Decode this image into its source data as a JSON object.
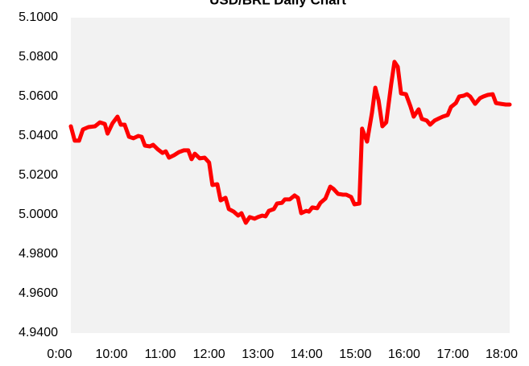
{
  "chart_data": {
    "type": "line",
    "title": "USD/BRL  Daily Chart",
    "x": [
      0,
      0.07,
      0.15,
      0.22,
      0.32,
      0.44,
      0.53,
      0.62,
      0.67,
      0.76,
      0.85,
      0.91,
      0.98,
      1.06,
      1.14,
      1.23,
      1.29,
      1.35,
      1.44,
      1.5,
      1.59,
      1.67,
      1.73,
      1.79,
      1.88,
      1.97,
      2.06,
      2.14,
      2.2,
      2.26,
      2.35,
      2.44,
      2.52,
      2.58,
      2.67,
      2.73,
      2.82,
      2.88,
      2.97,
      3.05,
      3.11,
      3.19,
      3.26,
      3.35,
      3.41,
      3.49,
      3.55,
      3.61,
      3.7,
      3.76,
      3.85,
      3.9,
      3.99,
      4.08,
      4.14,
      4.2,
      4.29,
      4.34,
      4.4,
      4.49,
      4.55,
      4.64,
      4.73,
      4.79,
      4.87,
      4.96,
      5.02,
      5.11,
      5.17,
      5.26,
      5.31,
      5.4,
      5.49,
      5.55,
      5.61,
      5.68,
      5.75,
      5.84,
      5.9,
      5.96,
      6.02,
      6.11,
      6.19,
      6.25,
      6.34,
      6.4,
      6.49,
      6.55,
      6.63,
      6.72,
      6.78,
      6.87,
      6.93,
      7.02,
      7.08,
      7.16,
      7.22,
      7.28,
      7.37,
      7.46,
      7.52,
      7.6,
      7.69,
      7.75,
      7.84,
      7.93,
      8
    ],
    "series": [
      {
        "name": "USD/BRL",
        "color": "#ff0000",
        "values": [
          5.0449,
          5.0376,
          5.0376,
          5.0433,
          5.0445,
          5.0449,
          5.0469,
          5.0461,
          5.0412,
          5.0465,
          5.0498,
          5.0457,
          5.0457,
          5.0396,
          5.0388,
          5.04,
          5.0396,
          5.0351,
          5.0347,
          5.0355,
          5.0331,
          5.0314,
          5.0322,
          5.029,
          5.0302,
          5.0318,
          5.0327,
          5.0327,
          5.0282,
          5.031,
          5.0286,
          5.029,
          5.0265,
          5.0151,
          5.0155,
          5.0073,
          5.0086,
          5.0029,
          5.0016,
          4.9996,
          5.0008,
          4.9959,
          4.9988,
          4.998,
          4.9988,
          4.9996,
          4.9992,
          5.002,
          5.0029,
          5.0057,
          5.0061,
          5.0078,
          5.0078,
          5.0098,
          5.0086,
          5.0008,
          5.002,
          5.0016,
          5.0037,
          5.0033,
          5.0061,
          5.0082,
          5.0143,
          5.0131,
          5.0106,
          5.0102,
          5.0102,
          5.009,
          5.0053,
          5.0057,
          5.0437,
          5.0371,
          5.0518,
          5.0645,
          5.058,
          5.0449,
          5.0469,
          5.0661,
          5.0776,
          5.0751,
          5.0616,
          5.0612,
          5.0551,
          5.0498,
          5.0535,
          5.0486,
          5.0478,
          5.0457,
          5.0478,
          5.049,
          5.0498,
          5.0506,
          5.0547,
          5.0567,
          5.06,
          5.0604,
          5.0612,
          5.06,
          5.0563,
          5.0592,
          5.06,
          5.0608,
          5.0612,
          5.0567,
          5.0563,
          5.0559,
          5.0559
        ]
      }
    ],
    "xlim": [
      0,
      8
    ],
    "xticks": [
      {
        "value": 0,
        "label": "0:00"
      },
      {
        "value": 1,
        "label": "10:00"
      },
      {
        "value": 2,
        "label": "11:00"
      },
      {
        "value": 3,
        "label": "12:00"
      },
      {
        "value": 4,
        "label": "13:00"
      },
      {
        "value": 5,
        "label": "14:00"
      },
      {
        "value": 6,
        "label": "15:00"
      },
      {
        "value": 7,
        "label": "16:00"
      },
      {
        "value": 8,
        "label": "17:00"
      },
      {
        "value": 9,
        "label": "18:00"
      }
    ],
    "ylim": [
      4.94,
      5.1
    ],
    "yticks": [
      {
        "value": 4.94,
        "label": "4.9400"
      },
      {
        "value": 4.96,
        "label": "4.9600"
      },
      {
        "value": 4.98,
        "label": "4.9800"
      },
      {
        "value": 5,
        "label": "5.0000"
      },
      {
        "value": 5.02,
        "label": "5.0200"
      },
      {
        "value": 5.04,
        "label": "5.0400"
      },
      {
        "value": 5.06,
        "label": "5.0600"
      },
      {
        "value": 5.08,
        "label": "5.0800"
      },
      {
        "value": 5.1,
        "label": "5.1000"
      }
    ],
    "grid": false
  }
}
